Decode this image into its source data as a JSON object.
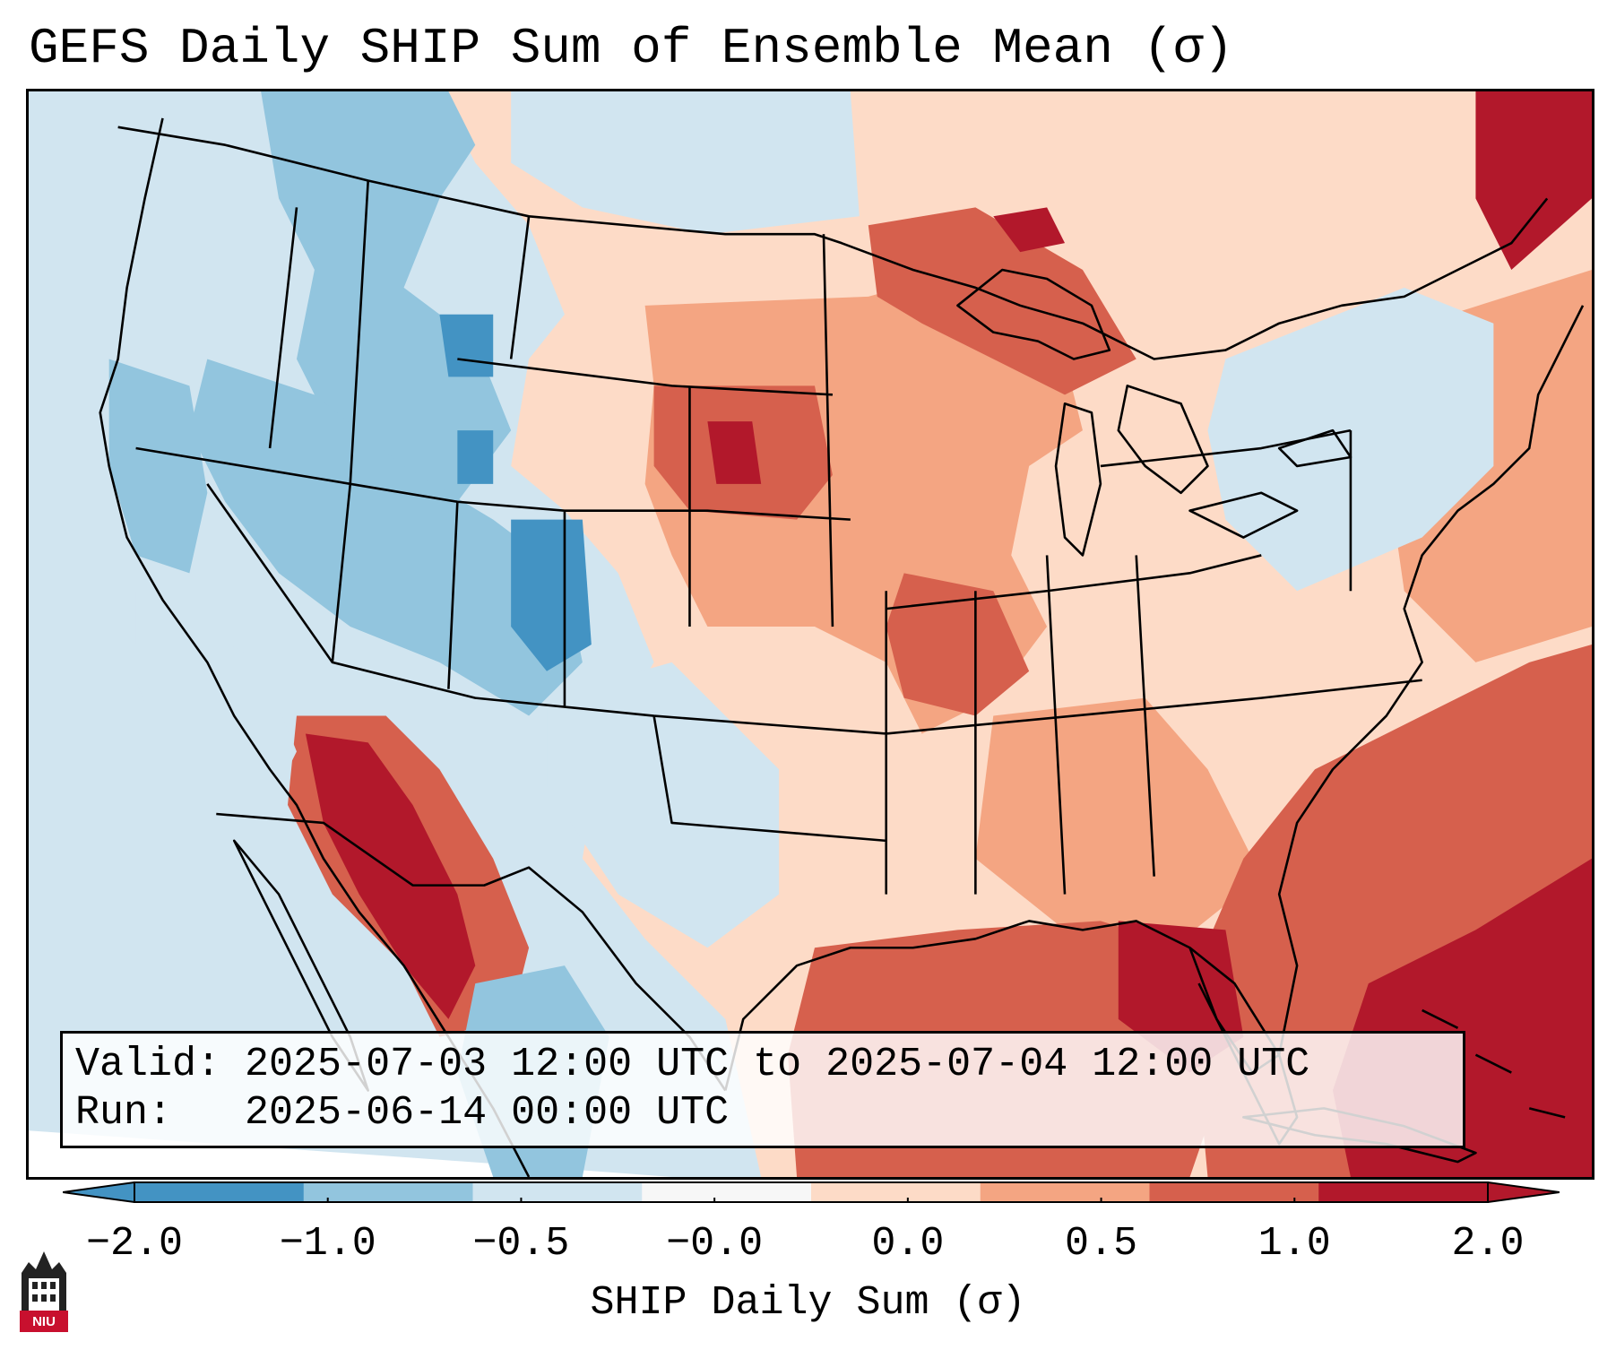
{
  "title": "GEFS Daily SHIP Sum of Ensemble Mean (σ)",
  "info": {
    "valid_label": "Valid:",
    "valid_value": "2025-07-03 12:00 UTC to 2025-07-04 12:00 UTC",
    "run_label": "Run:",
    "run_value": "2025-06-14 00:00 UTC"
  },
  "colorbar": {
    "label": "SHIP Daily Sum (σ)",
    "ticks": [
      "−2.0",
      "−1.0",
      "−0.5",
      "−0.0",
      "0.0",
      "0.5",
      "1.0",
      "2.0"
    ],
    "colors": [
      "#4393c3",
      "#92c5de",
      "#d1e5f0",
      "#f7f7f7",
      "#fddbc7",
      "#f4a582",
      "#d6604d",
      "#b2182b"
    ],
    "extend": "both"
  },
  "logo": {
    "text": "NIU"
  }
}
